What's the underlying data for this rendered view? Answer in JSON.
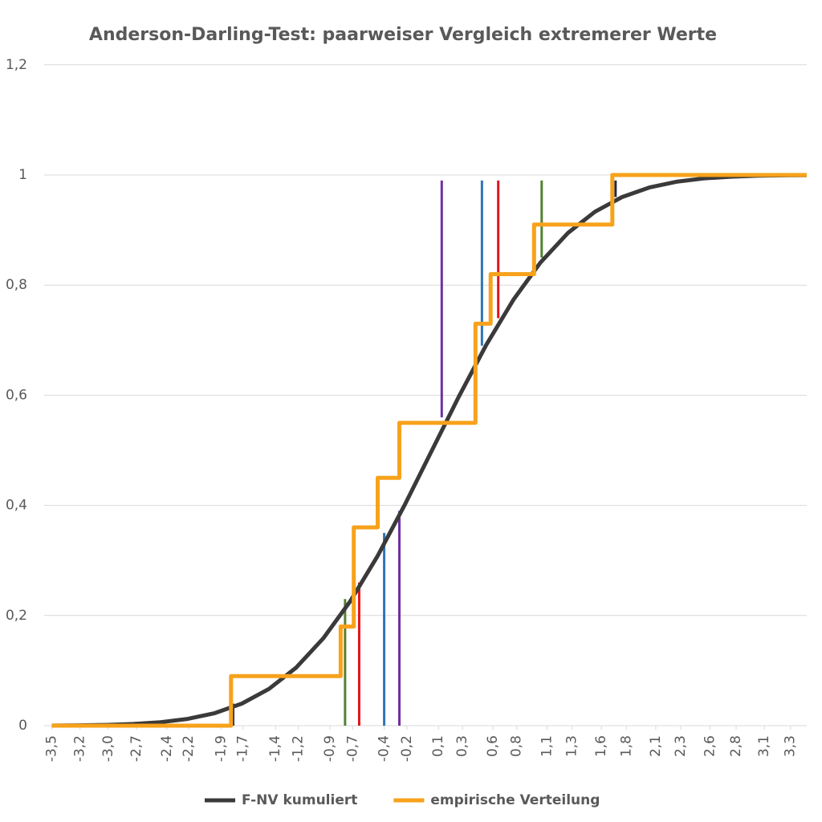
{
  "chart_data": {
    "type": "line",
    "title": "Anderson-Darling-Test: paarweiser Vergleich extremerer Werte",
    "xlim": [
      -3.57,
      3.45
    ],
    "ylim": [
      0,
      1.2
    ],
    "xticks": [
      {
        "value": -3.5,
        "label": "-3,5"
      },
      {
        "value": -3.24,
        "label": "-3,2"
      },
      {
        "value": -2.98,
        "label": "-3,0"
      },
      {
        "value": -2.72,
        "label": "-2,7"
      },
      {
        "value": -2.44,
        "label": "-2,4"
      },
      {
        "value": -2.24,
        "label": "-2,2"
      },
      {
        "value": -1.94,
        "label": "-1,9"
      },
      {
        "value": -1.74,
        "label": "-1,7"
      },
      {
        "value": -1.44,
        "label": "-1,4"
      },
      {
        "value": -1.23,
        "label": "-1,2"
      },
      {
        "value": -0.94,
        "label": "-0,9"
      },
      {
        "value": -0.73,
        "label": "-0,7"
      },
      {
        "value": -0.44,
        "label": "-0,4"
      },
      {
        "value": -0.23,
        "label": "-0,2"
      },
      {
        "value": 0.06,
        "label": "0,1"
      },
      {
        "value": 0.28,
        "label": "0,3"
      },
      {
        "value": 0.56,
        "label": "0,6"
      },
      {
        "value": 0.78,
        "label": "0,8"
      },
      {
        "value": 1.06,
        "label": "1,1"
      },
      {
        "value": 1.29,
        "label": "1,3"
      },
      {
        "value": 1.56,
        "label": "1,6"
      },
      {
        "value": 1.79,
        "label": "1,8"
      },
      {
        "value": 2.06,
        "label": "2,1"
      },
      {
        "value": 2.29,
        "label": "2,3"
      },
      {
        "value": 2.56,
        "label": "2,6"
      },
      {
        "value": 2.8,
        "label": "2,8"
      },
      {
        "value": 3.06,
        "label": "3,1"
      },
      {
        "value": 3.3,
        "label": "3,3"
      }
    ],
    "yticks": [
      0,
      {
        "value": 0.2,
        "label": "0,2"
      },
      {
        "value": 0.4,
        "label": "0,4"
      },
      {
        "value": 0.6,
        "label": "0,6"
      },
      {
        "value": 0.8,
        "label": "0,8"
      },
      1,
      {
        "value": 1.2,
        "label": "1,2"
      }
    ],
    "grid": true,
    "legend": "bottom",
    "series": [
      {
        "name": "F-NV kumuliert",
        "color": "#3a3a3a",
        "x": [
          -3.5,
          -3.25,
          -3.0,
          -2.75,
          -2.5,
          -2.25,
          -2.0,
          -1.75,
          -1.5,
          -1.25,
          -1.0,
          -0.75,
          -0.5,
          -0.25,
          0,
          0.25,
          0.5,
          0.75,
          1.0,
          1.25,
          1.5,
          1.75,
          2.0,
          2.25,
          2.5,
          2.75,
          3.0,
          3.25,
          3.45
        ],
        "values": [
          0.0002,
          0.0006,
          0.0013,
          0.003,
          0.0062,
          0.0122,
          0.0228,
          0.0401,
          0.0668,
          0.1056,
          0.1587,
          0.2266,
          0.3085,
          0.4013,
          0.5,
          0.5987,
          0.6915,
          0.7734,
          0.8413,
          0.8944,
          0.9332,
          0.9599,
          0.9772,
          0.9878,
          0.9938,
          0.997,
          0.9987,
          0.9994,
          0.9997
        ]
      },
      {
        "name": "empirische Verteilung",
        "color": "#f7a21b",
        "x": [
          -3.5,
          -1.85,
          -1.85,
          -0.84,
          -0.84,
          -0.72,
          -0.72,
          -0.5,
          -0.5,
          -0.3,
          -0.3,
          0.4,
          0.4,
          0.54,
          0.54,
          0.94,
          0.94,
          1.66,
          1.66,
          3.45
        ],
        "values": [
          0,
          0,
          0.09,
          0.09,
          0.18,
          0.18,
          0.36,
          0.36,
          0.45,
          0.45,
          0.55,
          0.55,
          0.73,
          0.73,
          0.82,
          0.82,
          0.91,
          0.91,
          1,
          1
        ]
      }
    ],
    "segments": [
      {
        "x": -1.83,
        "y0": 0,
        "y1": 0.04,
        "color": "#1f2a44"
      },
      {
        "x": -0.8,
        "y0": 0,
        "y1": 0.23,
        "color": "#548235"
      },
      {
        "x": -0.67,
        "y0": 0,
        "y1": 0.26,
        "color": "#e3141b"
      },
      {
        "x": -0.44,
        "y0": 0,
        "y1": 0.35,
        "color": "#2e75b6"
      },
      {
        "x": -0.3,
        "y0": 0,
        "y1": 0.39,
        "color": "#7030a0"
      },
      {
        "x": 0.09,
        "y0": 0.56,
        "y1": 0.99,
        "color": "#7030a0"
      },
      {
        "x": 0.46,
        "y0": 0.69,
        "y1": 0.99,
        "color": "#2e75b6"
      },
      {
        "x": 0.61,
        "y0": 0.74,
        "y1": 0.99,
        "color": "#e3141b"
      },
      {
        "x": 1.01,
        "y0": 0.85,
        "y1": 0.99,
        "color": "#548235"
      },
      {
        "x": 1.69,
        "y0": 0.96,
        "y1": 0.99,
        "color": "#1f2a44"
      }
    ]
  }
}
